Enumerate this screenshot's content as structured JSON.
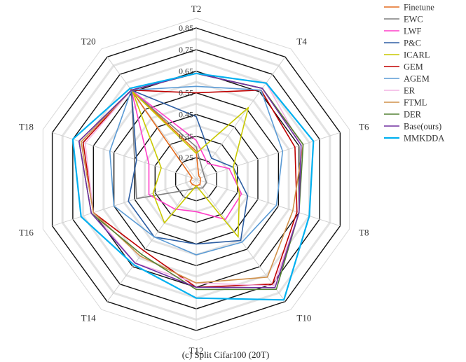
{
  "chart_data": {
    "type": "radar",
    "caption": "(c)  Split Cifar100 (20T)",
    "axes": [
      "T2",
      "T4",
      "T6",
      "T8",
      "T10",
      "T12",
      "T14",
      "T16",
      "T18",
      "T20"
    ],
    "range": [
      0.15,
      0.85
    ],
    "ticks": [
      0.25,
      0.35,
      0.45,
      0.55,
      0.65,
      0.75,
      0.85
    ],
    "tick_labels": [
      "0.25",
      "0.35",
      "0.45",
      "0.55",
      "0.65",
      "0.75",
      "0.85"
    ],
    "legend_position": "top-right",
    "series": [
      {
        "name": "Finetune",
        "color": "#e46c1f",
        "values": [
          0.28,
          0.17,
          0.17,
          0.17,
          0.18,
          0.18,
          0.18,
          0.18,
          0.17,
          0.67
        ]
      },
      {
        "name": "EWC",
        "color": "#7f7f7f",
        "values": [
          0.3,
          0.2,
          0.19,
          0.2,
          0.2,
          0.19,
          0.21,
          0.44,
          0.45,
          0.66
        ]
      },
      {
        "name": "LWF",
        "color": "#ff3ec8",
        "values": [
          0.33,
          0.24,
          0.31,
          0.37,
          0.38,
          0.3,
          0.32,
          0.38,
          0.38,
          0.66
        ]
      },
      {
        "name": "P&C",
        "color": "#2e5fa3",
        "values": [
          0.44,
          0.27,
          0.33,
          0.4,
          0.5,
          0.45,
          0.48,
          0.48,
          0.44,
          0.66
        ]
      },
      {
        "name": "ICARL",
        "color": "#c9c900",
        "values": [
          0.27,
          0.56,
          0.33,
          0.36,
          0.48,
          0.18,
          0.4,
          0.36,
          0.32,
          0.65
        ]
      },
      {
        "name": "GEM",
        "color": "#c00000",
        "values": [
          0.55,
          0.66,
          0.63,
          0.64,
          0.75,
          0.65,
          0.56,
          0.65,
          0.7,
          0.66
        ]
      },
      {
        "name": "AGEM",
        "color": "#5b9bd5",
        "values": [
          0.58,
          0.66,
          0.57,
          0.54,
          0.51,
          0.5,
          0.48,
          0.55,
          0.57,
          0.66
        ]
      },
      {
        "name": "ER",
        "color": "#f4b4e4",
        "values": [
          0.64,
          0.7,
          0.66,
          0.65,
          0.76,
          0.63,
          0.63,
          0.65,
          0.69,
          0.66
        ]
      },
      {
        "name": "FTML",
        "color": "#d0904a",
        "values": [
          0.64,
          0.67,
          0.67,
          0.62,
          0.71,
          0.63,
          0.59,
          0.65,
          0.71,
          0.66
        ]
      },
      {
        "name": "DER",
        "color": "#548235",
        "values": [
          0.64,
          0.67,
          0.67,
          0.65,
          0.78,
          0.66,
          0.58,
          0.66,
          0.72,
          0.66
        ]
      },
      {
        "name": "Base(ours)",
        "color": "#7030a0",
        "values": [
          0.64,
          0.67,
          0.66,
          0.65,
          0.77,
          0.65,
          0.63,
          0.66,
          0.72,
          0.66
        ]
      },
      {
        "name": "MMKDDA",
        "color": "#00b0f0",
        "values": [
          0.64,
          0.7,
          0.72,
          0.7,
          0.84,
          0.7,
          0.64,
          0.71,
          0.75,
          0.67
        ]
      }
    ]
  }
}
